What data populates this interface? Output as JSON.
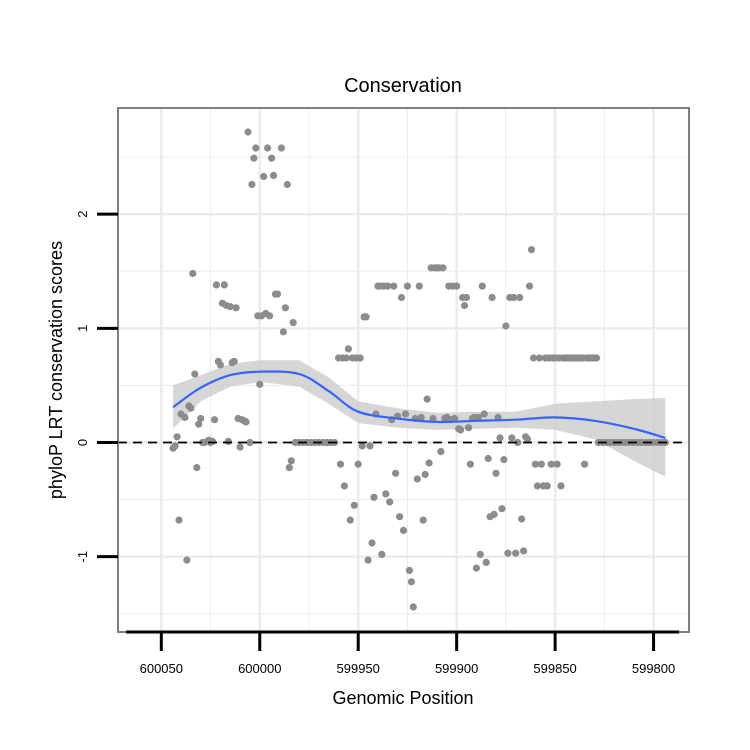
{
  "chart_data": {
    "type": "scatter",
    "title": "Conservation",
    "xlabel": "Genomic Position",
    "ylabel": "phyloP LRT conservation scores",
    "x_reversed": true,
    "xlim": [
      600072,
      599782
    ],
    "ylim": [
      -1.66,
      2.93
    ],
    "x_ticks": [
      600050,
      600000,
      599950,
      599900,
      599850,
      599800
    ],
    "x_tick_labels": [
      "600050",
      "600000",
      "599950",
      "599900",
      "599850",
      "599800"
    ],
    "y_ticks": [
      2,
      1,
      0,
      -1
    ],
    "y_tick_labels": [
      "2",
      "1",
      "0",
      "-1"
    ],
    "grid": true,
    "reference_line": {
      "y": 0,
      "style": "dashed"
    },
    "colors": {
      "points": "#8c8c8c",
      "smooth": "#3366ff",
      "ribbon": "#cccccc",
      "panel_border": "#7f7f7f",
      "grid": "#ebebeb"
    },
    "points": [
      [
        600044,
        -0.05
      ],
      [
        600043,
        -0.03
      ],
      [
        600042,
        0.05
      ],
      [
        600041,
        -0.68
      ],
      [
        600040,
        0.25
      ],
      [
        600038,
        0.22
      ],
      [
        600037,
        -1.03
      ],
      [
        600036,
        0.32
      ],
      [
        600035,
        0.3
      ],
      [
        600034,
        1.48
      ],
      [
        600033,
        0.6
      ],
      [
        600032,
        -0.22
      ],
      [
        600031,
        0.16
      ],
      [
        600030,
        0.21
      ],
      [
        600029,
        0.0
      ],
      [
        600028,
        0.0
      ],
      [
        600026,
        0.02
      ],
      [
        600025,
        0.0
      ],
      [
        600024,
        0.01
      ],
      [
        600023,
        0.2
      ],
      [
        600022,
        1.38
      ],
      [
        600021,
        0.71
      ],
      [
        600020,
        0.68
      ],
      [
        600019,
        1.22
      ],
      [
        600018,
        1.38
      ],
      [
        600017,
        1.2
      ],
      [
        600016,
        0.01
      ],
      [
        600015,
        1.19
      ],
      [
        600014,
        0.7
      ],
      [
        600013,
        0.71
      ],
      [
        600012,
        1.18
      ],
      [
        600011,
        0.21
      ],
      [
        600010,
        -0.04
      ],
      [
        600009,
        0.2
      ],
      [
        600008,
        0.19
      ],
      [
        600007,
        0.18
      ],
      [
        600006,
        2.72
      ],
      [
        600005,
        0.0
      ],
      [
        600004,
        2.26
      ],
      [
        600003,
        2.49
      ],
      [
        600002,
        2.58
      ],
      [
        600001,
        1.11
      ],
      [
        600000,
        0.51
      ],
      [
        599999,
        1.11
      ],
      [
        599998,
        2.33
      ],
      [
        599997,
        1.13
      ],
      [
        599996,
        2.58
      ],
      [
        599995,
        1.11
      ],
      [
        599994,
        2.49
      ],
      [
        599993,
        2.34
      ],
      [
        599992,
        1.3
      ],
      [
        599991,
        1.3
      ],
      [
        599989,
        2.58
      ],
      [
        599988,
        0.97
      ],
      [
        599987,
        1.18
      ],
      [
        599986,
        2.26
      ],
      [
        599985,
        -0.22
      ],
      [
        599984,
        -0.16
      ],
      [
        599983,
        1.05
      ],
      [
        599982,
        0.0
      ],
      [
        599980,
        0.0
      ],
      [
        599978,
        0.0
      ],
      [
        599976,
        0.0
      ],
      [
        599974,
        0.0
      ],
      [
        599972,
        0.0
      ],
      [
        599970,
        0.0
      ],
      [
        599968,
        0.0
      ],
      [
        599966,
        0.0
      ],
      [
        599964,
        0.0
      ],
      [
        599962,
        0.0
      ],
      [
        599960,
        0.74
      ],
      [
        599959,
        -0.19
      ],
      [
        599958,
        0.74
      ],
      [
        599957,
        -0.38
      ],
      [
        599956,
        0.74
      ],
      [
        599955,
        0.82
      ],
      [
        599954,
        -0.68
      ],
      [
        599953,
        0.74
      ],
      [
        599952,
        -0.55
      ],
      [
        599951,
        0.74
      ],
      [
        599950,
        -0.19
      ],
      [
        599949,
        0.74
      ],
      [
        599948,
        -0.03
      ],
      [
        599947,
        1.1
      ],
      [
        599946,
        1.1
      ],
      [
        599945,
        -1.03
      ],
      [
        599944,
        -0.03
      ],
      [
        599943,
        -0.88
      ],
      [
        599942,
        -0.48
      ],
      [
        599941,
        0.25
      ],
      [
        599940,
        1.37
      ],
      [
        599939,
        1.37
      ],
      [
        599938,
        -0.98
      ],
      [
        599937,
        1.37
      ],
      [
        599936,
        -0.45
      ],
      [
        599935,
        1.37
      ],
      [
        599934,
        -0.52
      ],
      [
        599933,
        0.2
      ],
      [
        599932,
        1.37
      ],
      [
        599931,
        -0.27
      ],
      [
        599930,
        0.23
      ],
      [
        599929,
        -0.65
      ],
      [
        599928,
        1.27
      ],
      [
        599927,
        -0.77
      ],
      [
        599926,
        0.25
      ],
      [
        599925,
        1.37
      ],
      [
        599924,
        -1.12
      ],
      [
        599923,
        -1.22
      ],
      [
        599922,
        -1.44
      ],
      [
        599921,
        0.21
      ],
      [
        599920,
        -0.32
      ],
      [
        599919,
        1.37
      ],
      [
        599918,
        0.22
      ],
      [
        599917,
        -0.68
      ],
      [
        599916,
        -0.28
      ],
      [
        599915,
        0.38
      ],
      [
        599914,
        -0.18
      ],
      [
        599913,
        1.53
      ],
      [
        599912,
        0.21
      ],
      [
        599911,
        1.53
      ],
      [
        599910,
        1.53
      ],
      [
        599909,
        1.53
      ],
      [
        599908,
        -0.08
      ],
      [
        599907,
        1.53
      ],
      [
        599906,
        0.21
      ],
      [
        599905,
        0.22
      ],
      [
        599904,
        1.37
      ],
      [
        599903,
        0.2
      ],
      [
        599902,
        1.37
      ],
      [
        599901,
        0.21
      ],
      [
        599900,
        1.37
      ],
      [
        599899,
        0.12
      ],
      [
        599898,
        0.11
      ],
      [
        599897,
        1.27
      ],
      [
        599896,
        1.2
      ],
      [
        599895,
        1.27
      ],
      [
        599894,
        0.13
      ],
      [
        599893,
        -0.19
      ],
      [
        599892,
        0.21
      ],
      [
        599891,
        0.22
      ],
      [
        599890,
        -1.1
      ],
      [
        599889,
        0.22
      ],
      [
        599888,
        -0.98
      ],
      [
        599887,
        1.37
      ],
      [
        599886,
        0.25
      ],
      [
        599885,
        -1.05
      ],
      [
        599884,
        -0.14
      ],
      [
        599883,
        -0.65
      ],
      [
        599882,
        1.27
      ],
      [
        599881,
        -0.63
      ],
      [
        599880,
        -0.27
      ],
      [
        599879,
        0.22
      ],
      [
        599878,
        0.04
      ],
      [
        599877,
        -0.58
      ],
      [
        599876,
        -0.15
      ],
      [
        599875,
        1.02
      ],
      [
        599874,
        -0.97
      ],
      [
        599873,
        1.27
      ],
      [
        599872,
        0.04
      ],
      [
        599871,
        1.27
      ],
      [
        599870,
        -0.97
      ],
      [
        599869,
        0.0
      ],
      [
        599868,
        1.27
      ],
      [
        599867,
        -0.67
      ],
      [
        599866,
        -0.95
      ],
      [
        599865,
        0.05
      ],
      [
        599864,
        0.03
      ],
      [
        599863,
        1.37
      ],
      [
        599862,
        1.69
      ],
      [
        599861,
        0.74
      ],
      [
        599860,
        -0.19
      ],
      [
        599859,
        -0.38
      ],
      [
        599858,
        0.74
      ],
      [
        599857,
        -0.19
      ],
      [
        599856,
        -0.38
      ],
      [
        599855,
        0.74
      ],
      [
        599854,
        -0.38
      ],
      [
        599853,
        0.74
      ],
      [
        599852,
        -0.19
      ],
      [
        599851,
        0.74
      ],
      [
        599850,
        0.74
      ],
      [
        599849,
        -0.19
      ],
      [
        599848,
        0.74
      ],
      [
        599847,
        -0.38
      ],
      [
        599846,
        0.74
      ],
      [
        599845,
        0.74
      ],
      [
        599844,
        0.74
      ],
      [
        599843,
        0.74
      ],
      [
        599842,
        0.74
      ],
      [
        599841,
        0.74
      ],
      [
        599840,
        0.74
      ],
      [
        599839,
        0.74
      ],
      [
        599838,
        0.74
      ],
      [
        599837,
        0.74
      ],
      [
        599836,
        0.74
      ],
      [
        599835,
        -0.19
      ],
      [
        599834,
        0.74
      ],
      [
        599833,
        0.74
      ],
      [
        599832,
        0.74
      ],
      [
        599831,
        0.74
      ],
      [
        599830,
        0.74
      ],
      [
        599829,
        0.74
      ],
      [
        599828,
        0.0
      ],
      [
        599826,
        0.0
      ],
      [
        599824,
        0.0
      ],
      [
        599822,
        0.0
      ],
      [
        599820,
        0.0
      ],
      [
        599818,
        0.0
      ],
      [
        599816,
        0.0
      ],
      [
        599814,
        0.0
      ],
      [
        599812,
        0.0
      ],
      [
        599810,
        0.0
      ],
      [
        599808,
        0.0
      ],
      [
        599806,
        0.0
      ],
      [
        599804,
        0.0
      ],
      [
        599802,
        0.0
      ],
      [
        599800,
        0.0
      ],
      [
        599798,
        0.0
      ],
      [
        599796,
        0.0
      ],
      [
        599794,
        0.0
      ]
    ],
    "smooth": {
      "x": [
        600044,
        600030,
        600015,
        600000,
        599980,
        599965,
        599950,
        599930,
        599910,
        599890,
        599870,
        599850,
        599830,
        599810,
        599794
      ],
      "y": [
        0.31,
        0.48,
        0.59,
        0.62,
        0.6,
        0.45,
        0.27,
        0.21,
        0.18,
        0.19,
        0.2,
        0.22,
        0.19,
        0.12,
        0.04
      ],
      "lower": [
        0.12,
        0.36,
        0.49,
        0.53,
        0.49,
        0.34,
        0.17,
        0.13,
        0.11,
        0.12,
        0.13,
        0.11,
        0.03,
        -0.16,
        -0.3
      ],
      "upper": [
        0.5,
        0.59,
        0.69,
        0.72,
        0.72,
        0.57,
        0.36,
        0.3,
        0.26,
        0.27,
        0.27,
        0.34,
        0.36,
        0.38,
        0.39
      ]
    }
  }
}
